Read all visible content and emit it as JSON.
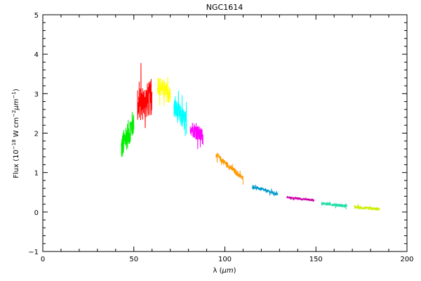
{
  "chart_data": {
    "type": "line",
    "title": "NGC1614",
    "xlabel_main": "λ (",
    "xlabel_unit": "μm",
    "xlabel_close": ")",
    "ylabel_prefix": "Flux (10",
    "ylabel_exp1": "−18",
    "ylabel_mid1": " W cm",
    "ylabel_exp2": "−2",
    "ylabel_mid2": "μm",
    "ylabel_exp3": "−1",
    "ylabel_close": ")",
    "xlim": [
      0,
      200
    ],
    "ylim": [
      -1,
      5
    ],
    "xticks": [
      0,
      50,
      100,
      150,
      200
    ],
    "xtick_labels": [
      "0",
      "50",
      "100",
      "150",
      "200"
    ],
    "yticks": [
      -1,
      0,
      1,
      2,
      3,
      4,
      5
    ],
    "ytick_labels": [
      "−1",
      "0",
      "1",
      "2",
      "3",
      "4",
      "5"
    ],
    "grid": false,
    "series": [
      {
        "color": "#00ee00",
        "x_range": [
          43,
          50
        ],
        "start": 1.6,
        "end": 2.3,
        "noise": 0.35
      },
      {
        "color": "#ff0000",
        "x_range": [
          52,
          60
        ],
        "start": 2.7,
        "end": 2.9,
        "noise": 0.45
      },
      {
        "color": "#ffff00",
        "x_range": [
          63,
          70
        ],
        "start": 3.25,
        "end": 2.95,
        "noise": 0.25
      },
      {
        "color": "#00ffff",
        "x_range": [
          72,
          79
        ],
        "start": 2.65,
        "end": 2.25,
        "noise": 0.28
      },
      {
        "color": "#ff00ff",
        "x_range": [
          81,
          88
        ],
        "start": 2.15,
        "end": 1.9,
        "noise": 0.2
      },
      {
        "color": "#ff9900",
        "x_range": [
          95,
          110
        ],
        "start": 1.45,
        "end": 0.85,
        "noise": 0.07
      },
      {
        "color": "#0099cc",
        "x_range": [
          115,
          129
        ],
        "start": 0.65,
        "end": 0.45,
        "noise": 0.04
      },
      {
        "color": "#cc00aa",
        "x_range": [
          134,
          149
        ],
        "start": 0.37,
        "end": 0.3,
        "noise": 0.03
      },
      {
        "color": "#22ddaa",
        "x_range": [
          153,
          167
        ],
        "start": 0.22,
        "end": 0.15,
        "noise": 0.04
      },
      {
        "color": "#ccee00",
        "x_range": [
          171,
          185
        ],
        "start": 0.12,
        "end": 0.07,
        "noise": 0.04
      }
    ]
  }
}
